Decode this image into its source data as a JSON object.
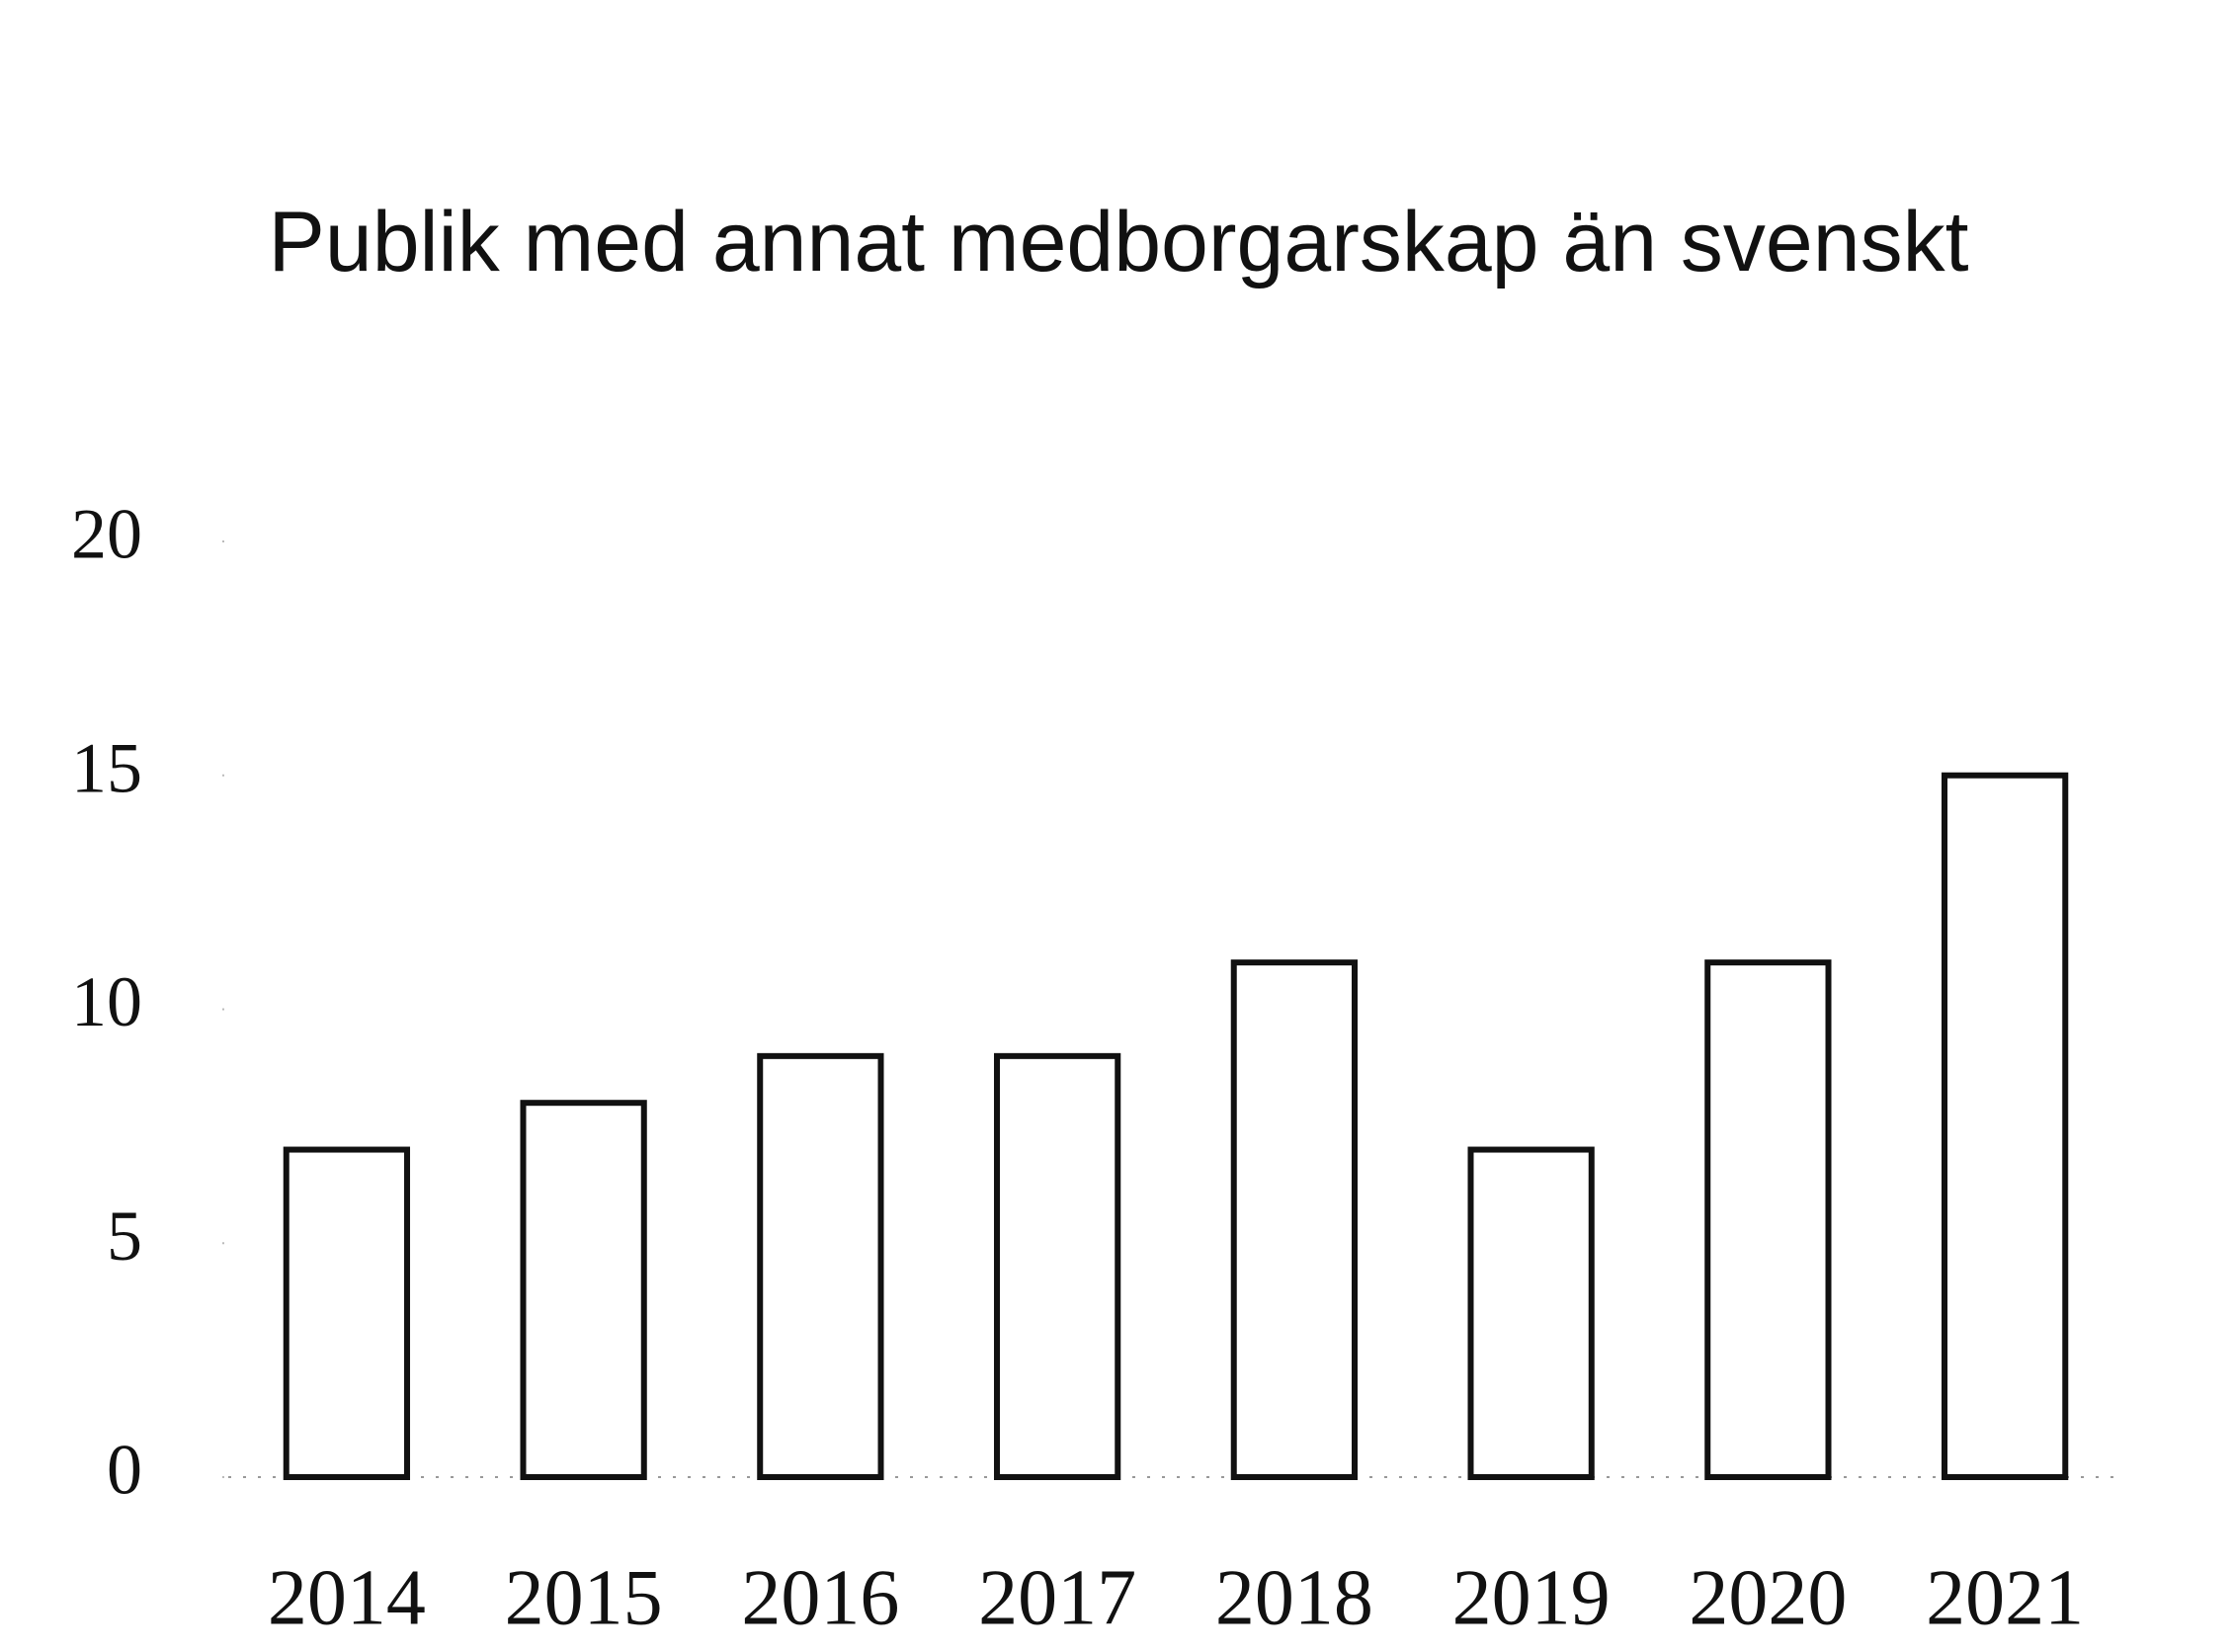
{
  "chart_data": {
    "type": "bar",
    "title": "Publik med annat medborgarskap än svenskt",
    "categories": [
      "2014",
      "2015",
      "2016",
      "2017",
      "2018",
      "2019",
      "2020",
      "2021"
    ],
    "values": [
      7,
      8,
      9,
      9,
      11,
      7,
      11,
      15
    ],
    "color": "#ffffff",
    "ylim": [
      0,
      20
    ],
    "yticks": [
      0,
      5,
      10,
      15,
      20
    ]
  }
}
